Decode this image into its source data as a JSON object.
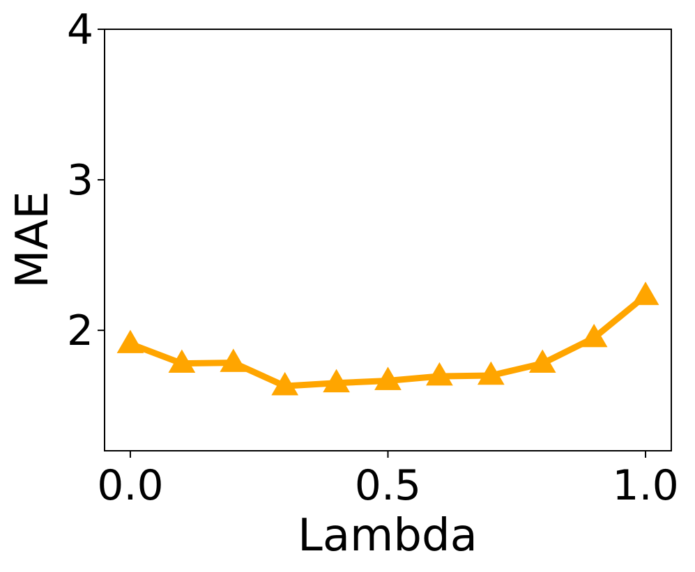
{
  "chart_data": {
    "type": "line",
    "title": "",
    "xlabel": "Lambda",
    "ylabel": "MAE",
    "xlim": [
      -0.05,
      1.05
    ],
    "ylim": [
      1.2,
      4.0
    ],
    "xticks": [
      0.0,
      0.5,
      1.0
    ],
    "xtick_labels": [
      "0.0",
      "0.5",
      "1.0"
    ],
    "yticks": [
      2,
      3,
      4
    ],
    "ytick_labels": [
      "2",
      "3",
      "4"
    ],
    "grid": false,
    "legend": "none",
    "series": [
      {
        "marker": "triangle-up",
        "color": "#FFA500",
        "x": [
          0.0,
          0.1,
          0.2,
          0.3,
          0.4,
          0.5,
          0.6,
          0.7,
          0.8,
          0.9,
          1.0
        ],
        "y": [
          1.91,
          1.78,
          1.785,
          1.63,
          1.65,
          1.665,
          1.695,
          1.7,
          1.78,
          1.95,
          2.23
        ]
      }
    ]
  }
}
